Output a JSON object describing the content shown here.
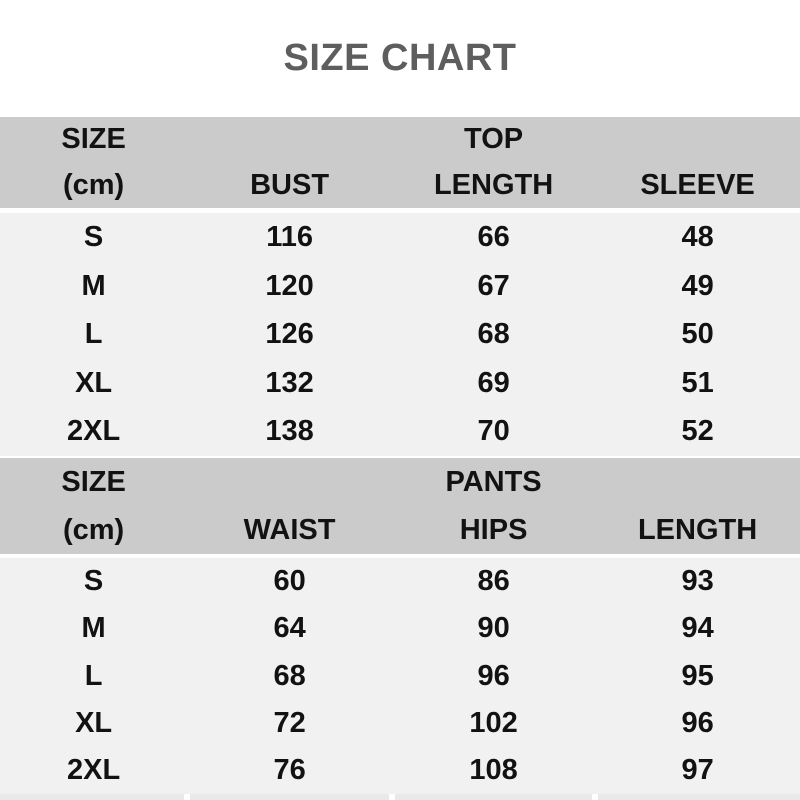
{
  "title": "SIZE CHART",
  "colors": {
    "title-color": "#5e5e5e",
    "text-color": "#121212",
    "header-bg": "#cbcbcb",
    "body-bg": "#f1f1f2",
    "page-bg": "#ffffff",
    "strip-bg": "#e9e9ec"
  },
  "chart_data": [
    {
      "type": "table",
      "title": "TOP",
      "corner_label": "SIZE",
      "unit_label": "(cm)",
      "columns": [
        "BUST",
        "LENGTH",
        "SLEEVE"
      ],
      "row_labels": [
        "S",
        "M",
        "L",
        "XL",
        "2XL"
      ],
      "rows": [
        [
          "116",
          "66",
          "48"
        ],
        [
          "120",
          "67",
          "49"
        ],
        [
          "126",
          "68",
          "50"
        ],
        [
          "132",
          "69",
          "51"
        ],
        [
          "138",
          "70",
          "52"
        ]
      ]
    },
    {
      "type": "table",
      "title": "PANTS",
      "corner_label": "SIZE",
      "unit_label": "(cm)",
      "columns": [
        "WAIST",
        "HIPS",
        "LENGTH"
      ],
      "row_labels": [
        "S",
        "M",
        "L",
        "XL",
        "2XL"
      ],
      "rows": [
        [
          "60",
          "86",
          "93"
        ],
        [
          "64",
          "90",
          "94"
        ],
        [
          "68",
          "96",
          "95"
        ],
        [
          "72",
          "102",
          "96"
        ],
        [
          "76",
          "108",
          "97"
        ]
      ]
    }
  ]
}
